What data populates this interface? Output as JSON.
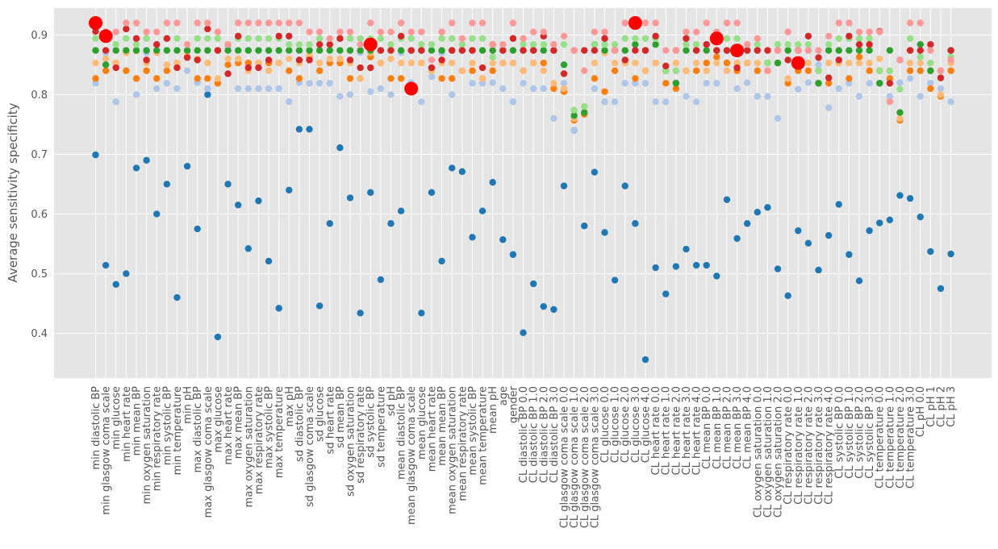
{
  "chart_data": {
    "type": "scatter",
    "ylabel": "Average sensitivity specificity",
    "xlabel": "",
    "ylim": [
      0.325,
      0.945
    ],
    "yticks": [
      0.4,
      0.5,
      0.6,
      0.7,
      0.8,
      0.9
    ],
    "grid": true,
    "colors": {
      "background": "#e5e5e5",
      "grid": "#ffffff",
      "dark_blue": "#1f77b4",
      "light_blue": "#aec7e8",
      "orange": "#ff7f0e",
      "light_orange": "#ffbb78",
      "green": "#2ca02c",
      "light_green": "#98df8a",
      "red": "#d62728",
      "pink": "#ff9896",
      "best": "#ff0000"
    },
    "categories": [
      "min diastolic BP",
      "min glasgow coma scale",
      "min glucose",
      "min heart rate",
      "min mean BP",
      "min oxygen saturation",
      "min respiratory rate",
      "min systolic BP",
      "min temperature",
      "min pH",
      "max diastolic BP",
      "max glasgow coma scale",
      "max glucose",
      "max heart rate",
      "max mean BP",
      "max oxygen saturation",
      "max respiratory rate",
      "max systolic BP",
      "max temperature",
      "max pH",
      "sd diastolic BP",
      "sd glasgow coma scale",
      "sd glucose",
      "sd heart rate",
      "sd mean BP",
      "sd oxygen saturation",
      "sd respiratory rate",
      "sd systolic BP",
      "sd temperature",
      "sd pH",
      "mean diastolic BP",
      "mean glasgow coma scale",
      "mean glucose",
      "mean heart rate",
      "mean mean BP",
      "mean oxygen saturation",
      "mean respiratory rate",
      "mean systolic BP",
      "mean temperature",
      "mean pH",
      "age",
      "gender",
      "CL diastolic BP 0.0",
      "CL diastolic BP 1.0",
      "CL diastolic BP 2.0",
      "CL diastolic BP 3.0",
      "CL glasgow coma scale 0.0",
      "CL glasgow coma scale 1.0",
      "CL glasgow coma scale 2.0",
      "CL glasgow coma scale 3.0",
      "CL glucose 0.0",
      "CL glucose 1.0",
      "CL glucose 2.0",
      "CL glucose 3.0",
      "CL glucose 4.0",
      "CL heart rate 0.0",
      "CL heart rate 1.0",
      "CL heart rate 2.0",
      "CL heart rate 3.0",
      "CL heart rate 4.0",
      "CL mean BP 0.0",
      "CL mean BP 1.0",
      "CL mean BP 2.0",
      "CL mean BP 3.0",
      "CL mean BP 4.0",
      "CL oxygen saturation 0.0",
      "CL oxygen saturation 1.0",
      "CL oxygen saturation 2.0",
      "CL respiratory rate 0.0",
      "CL respiratory rate 1.0",
      "CL respiratory rate 2.0",
      "CL respiratory rate 3.0",
      "CL respiratory rate 4.0",
      "CL systolic BP 0.0",
      "CL systolic BP 1.0",
      "CL systolic BP 2.0",
      "CL systolic BP 3.0",
      "CL temperature 0.0",
      "CL temperature 1.0",
      "CL temperature 2.0",
      "CL temperature 3.0",
      "CL pH 0.0",
      "CL pH 1",
      "CL pH 2",
      "CL pH 3"
    ],
    "series": [
      {
        "color": "#1f77b4",
        "values": [
          0.699,
          0.514,
          0.482,
          0.5,
          0.677,
          0.69,
          0.6,
          0.65,
          0.46,
          0.68,
          0.575,
          0.8,
          0.394,
          0.65,
          0.615,
          0.542,
          0.622,
          0.521,
          0.442,
          0.64,
          0.742,
          0.742,
          0.446,
          0.584,
          0.711,
          0.627,
          0.434,
          0.636,
          0.49,
          0.584,
          0.605,
          0.81,
          0.434,
          0.636,
          0.521,
          0.677,
          0.671,
          0.561,
          0.605,
          0.653,
          0.557,
          0.532,
          0.401,
          0.483,
          0.445,
          0.44,
          0.647,
          0.74,
          0.58,
          0.67,
          0.569,
          0.489,
          0.647,
          0.584,
          0.356,
          0.51,
          0.466,
          0.512,
          0.541,
          0.514,
          0.514,
          0.496,
          0.624,
          0.559,
          0.584,
          0.603,
          0.611,
          0.508,
          0.463,
          0.572,
          0.551,
          0.506,
          0.564,
          0.616,
          0.532,
          0.488,
          0.572,
          0.585,
          0.59,
          0.631,
          0.626,
          0.595,
          0.537,
          0.475,
          0.533
        ]
      },
      {
        "color": "#aec7e8",
        "values": [
          0.819,
          0.87,
          0.788,
          0.87,
          0.8,
          0.87,
          0.81,
          0.819,
          0.81,
          0.84,
          0.82,
          0.81,
          0.82,
          0.88,
          0.81,
          0.81,
          0.81,
          0.81,
          0.81,
          0.788,
          0.82,
          0.819,
          0.819,
          0.819,
          0.797,
          0.8,
          0.87,
          0.805,
          0.81,
          0.8,
          0.87,
          0.82,
          0.788,
          0.83,
          0.87,
          0.8,
          0.84,
          0.819,
          0.819,
          0.82,
          0.81,
          0.788,
          0.819,
          0.81,
          0.81,
          0.76,
          0.819,
          0.74,
          0.77,
          0.81,
          0.788,
          0.788,
          0.819,
          0.819,
          0.819,
          0.788,
          0.788,
          0.82,
          0.797,
          0.788,
          0.819,
          0.819,
          0.84,
          0.81,
          0.82,
          0.797,
          0.797,
          0.76,
          0.826,
          0.809,
          0.82,
          0.85,
          0.778,
          0.81,
          0.819,
          0.797,
          0.819,
          0.819,
          0.797,
          0.82,
          0.827,
          0.797,
          0.819,
          0.81,
          0.788
        ]
      },
      {
        "color": "#ff7f0e",
        "values": [
          0.827,
          0.84,
          0.853,
          0.84,
          0.827,
          0.84,
          0.827,
          0.84,
          0.853,
          0.863,
          0.827,
          0.827,
          0.819,
          0.85,
          0.853,
          0.853,
          0.853,
          0.853,
          0.853,
          0.84,
          0.827,
          0.863,
          0.84,
          0.853,
          0.853,
          0.827,
          0.827,
          0.863,
          0.853,
          0.827,
          0.827,
          0.81,
          0.853,
          0.84,
          0.827,
          0.827,
          0.84,
          0.84,
          0.827,
          0.84,
          0.853,
          0.853,
          0.84,
          0.853,
          0.853,
          0.81,
          0.805,
          0.757,
          0.767,
          0.827,
          0.805,
          0.84,
          0.853,
          0.827,
          0.84,
          0.853,
          0.819,
          0.81,
          0.84,
          0.84,
          0.853,
          0.863,
          0.853,
          0.84,
          0.853,
          0.84,
          0.84,
          0.853,
          0.819,
          0.84,
          0.84,
          0.819,
          0.819,
          0.853,
          0.827,
          0.863,
          0.84,
          0.84,
          0.827,
          0.757,
          0.84,
          0.84,
          0.81,
          0.797,
          0.84
        ]
      },
      {
        "color": "#ffbb78",
        "values": [
          0.853,
          0.86,
          0.853,
          0.87,
          0.873,
          0.853,
          0.87,
          0.85,
          0.853,
          0.87,
          0.86,
          0.853,
          0.827,
          0.86,
          0.86,
          0.84,
          0.853,
          0.84,
          0.853,
          0.86,
          0.853,
          0.867,
          0.853,
          0.86,
          0.86,
          0.853,
          0.827,
          0.87,
          0.853,
          0.86,
          0.853,
          0.853,
          0.853,
          0.84,
          0.853,
          0.853,
          0.84,
          0.853,
          0.827,
          0.853,
          0.853,
          0.853,
          0.84,
          0.853,
          0.84,
          0.819,
          0.81,
          0.76,
          0.78,
          0.853,
          0.87,
          0.853,
          0.853,
          0.853,
          0.84,
          0.853,
          0.84,
          0.853,
          0.84,
          0.853,
          0.84,
          0.853,
          0.84,
          0.853,
          0.853,
          0.853,
          0.853,
          0.853,
          0.827,
          0.853,
          0.853,
          0.84,
          0.853,
          0.853,
          0.853,
          0.853,
          0.853,
          0.86,
          0.84,
          0.76,
          0.853,
          0.853,
          0.84,
          0.8,
          0.853
        ]
      },
      {
        "color": "#2ca02c",
        "values": [
          0.874,
          0.85,
          0.874,
          0.874,
          0.874,
          0.874,
          0.874,
          0.874,
          0.874,
          0.874,
          0.874,
          0.874,
          0.874,
          0.874,
          0.874,
          0.874,
          0.874,
          0.874,
          0.874,
          0.874,
          0.874,
          0.874,
          0.874,
          0.874,
          0.874,
          0.874,
          0.874,
          0.874,
          0.874,
          0.874,
          0.874,
          0.874,
          0.874,
          0.874,
          0.874,
          0.874,
          0.874,
          0.874,
          0.874,
          0.874,
          0.874,
          0.874,
          0.874,
          0.874,
          0.874,
          0.874,
          0.85,
          0.765,
          0.77,
          0.884,
          0.874,
          0.874,
          0.874,
          0.884,
          0.874,
          0.884,
          0.84,
          0.819,
          0.874,
          0.874,
          0.874,
          0.874,
          0.874,
          0.874,
          0.874,
          0.874,
          0.853,
          0.853,
          0.874,
          0.874,
          0.874,
          0.819,
          0.874,
          0.874,
          0.874,
          0.874,
          0.874,
          0.819,
          0.874,
          0.77,
          0.874,
          0.884,
          0.84,
          0.84,
          0.874
        ]
      },
      {
        "color": "#98df8a",
        "values": [
          0.894,
          0.894,
          0.884,
          0.894,
          0.884,
          0.894,
          0.884,
          0.894,
          0.894,
          0.884,
          0.894,
          0.894,
          0.894,
          0.884,
          0.894,
          0.894,
          0.894,
          0.894,
          0.894,
          0.884,
          0.884,
          0.884,
          0.894,
          0.884,
          0.894,
          0.894,
          0.894,
          0.894,
          0.894,
          0.884,
          0.894,
          0.894,
          0.884,
          0.884,
          0.894,
          0.894,
          0.884,
          0.894,
          0.894,
          0.863,
          0.884,
          0.894,
          0.884,
          0.884,
          0.884,
          0.884,
          0.884,
          0.774,
          0.78,
          0.884,
          0.884,
          0.884,
          0.894,
          0.894,
          0.894,
          0.894,
          0.84,
          0.84,
          0.884,
          0.884,
          0.884,
          0.894,
          0.894,
          0.894,
          0.884,
          0.884,
          0.853,
          0.884,
          0.884,
          0.884,
          0.884,
          0.84,
          0.884,
          0.894,
          0.894,
          0.894,
          0.894,
          0.84,
          0.84,
          0.809,
          0.894,
          0.863,
          0.853,
          0.84,
          0.863
        ]
      },
      {
        "color": "#d62728",
        "values": [
          0.906,
          0.874,
          0.845,
          0.91,
          0.894,
          0.858,
          0.884,
          0.894,
          0.845,
          0.862,
          0.858,
          0.91,
          0.874,
          0.835,
          0.898,
          0.845,
          0.845,
          0.858,
          0.898,
          0.898,
          0.858,
          0.858,
          0.884,
          0.884,
          0.894,
          0.858,
          0.845,
          0.845,
          0.874,
          0.874,
          0.898,
          0.874,
          0.874,
          0.845,
          0.858,
          0.874,
          0.874,
          0.874,
          0.845,
          0.884,
          0.874,
          0.894,
          0.874,
          0.874,
          0.898,
          0.874,
          0.835,
          0.874,
          0.874,
          0.874,
          0.894,
          0.874,
          0.858,
          0.874,
          0.874,
          0.898,
          0.848,
          0.874,
          0.894,
          0.874,
          0.884,
          0.874,
          0.874,
          0.845,
          0.874,
          0.874,
          0.874,
          0.874,
          0.858,
          0.874,
          0.898,
          0.862,
          0.828,
          0.858,
          0.898,
          0.884,
          0.884,
          0.906,
          0.819,
          0.858,
          0.874,
          0.874,
          0.884,
          0.828,
          0.874
        ]
      },
      {
        "color": "#ff9896",
        "values": [
          0.92,
          0.905,
          0.905,
          0.92,
          0.92,
          0.905,
          0.905,
          0.92,
          0.92,
          0.884,
          0.92,
          0.92,
          0.905,
          0.884,
          0.92,
          0.92,
          0.92,
          0.92,
          0.92,
          0.92,
          0.92,
          0.905,
          0.905,
          0.894,
          0.905,
          0.905,
          0.884,
          0.92,
          0.905,
          0.905,
          0.92,
          0.905,
          0.905,
          0.858,
          0.905,
          0.92,
          0.894,
          0.92,
          0.92,
          0.884,
          0.884,
          0.92,
          0.894,
          0.905,
          0.905,
          0.884,
          0.898,
          0.874,
          0.84,
          0.905,
          0.905,
          0.874,
          0.92,
          0.92,
          0.92,
          0.92,
          0.874,
          0.874,
          0.905,
          0.905,
          0.92,
          0.905,
          0.92,
          0.92,
          0.884,
          0.894,
          0.84,
          0.874,
          0.905,
          0.874,
          0.874,
          0.874,
          0.898,
          0.92,
          0.92,
          0.905,
          0.905,
          0.905,
          0.788,
          0.858,
          0.92,
          0.92,
          0.874,
          0.84,
          0.858
        ]
      },
      {
        "color": "#ff0000",
        "best": true,
        "values": [
          0.92,
          0.898,
          null,
          null,
          null,
          null,
          null,
          null,
          null,
          null,
          null,
          null,
          null,
          null,
          null,
          null,
          null,
          null,
          null,
          null,
          null,
          null,
          null,
          null,
          null,
          null,
          null,
          0.884,
          null,
          null,
          null,
          0.81,
          null,
          null,
          null,
          null,
          null,
          null,
          null,
          null,
          null,
          null,
          null,
          null,
          null,
          null,
          null,
          null,
          null,
          null,
          null,
          null,
          null,
          0.92,
          null,
          null,
          null,
          null,
          null,
          null,
          null,
          0.894,
          null,
          0.874,
          null,
          null,
          null,
          null,
          null,
          0.853,
          null,
          null,
          null,
          null,
          null,
          null,
          null,
          null,
          null,
          null,
          null,
          null,
          null,
          null,
          null
        ]
      }
    ]
  }
}
